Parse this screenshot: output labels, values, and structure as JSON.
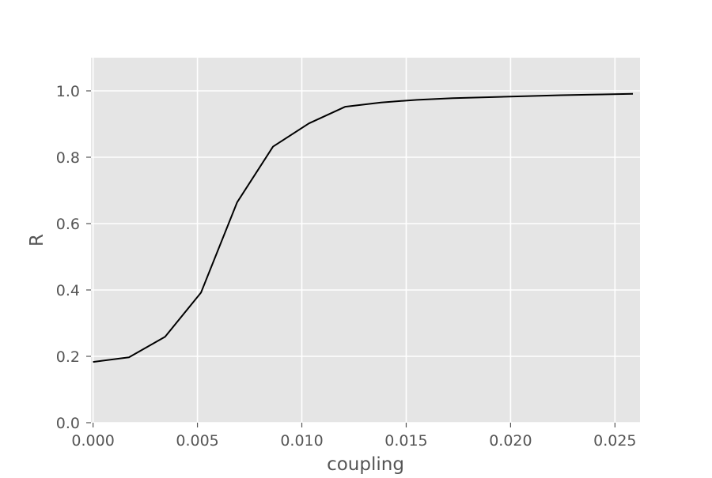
{
  "chart_data": {
    "type": "line",
    "title": "",
    "xlabel": "coupling",
    "ylabel": "R",
    "xlim": [
      -0.0001,
      0.0262
    ],
    "ylim": [
      0.0,
      1.1
    ],
    "xticks": [
      0.0,
      0.005,
      0.01,
      0.015,
      0.02,
      0.025
    ],
    "xtick_labels": [
      "0.000",
      "0.005",
      "0.010",
      "0.015",
      "0.020",
      "0.025"
    ],
    "yticks": [
      0.0,
      0.2,
      0.4,
      0.6,
      0.8,
      1.0
    ],
    "ytick_labels": [
      "0.0",
      "0.2",
      "0.4",
      "0.6",
      "0.8",
      "1.0"
    ],
    "grid": true,
    "style": "ggplot",
    "colors": {
      "plot_background": "#e5e5e5",
      "grid": "#ffffff",
      "line": "#000000",
      "tick_text": "#555555"
    },
    "series": [
      {
        "x": [
          0.0,
          0.00172,
          0.00345,
          0.00517,
          0.0069,
          0.00862,
          0.01034,
          0.01207,
          0.01379,
          0.01552,
          0.01724,
          0.01897,
          0.02069,
          0.02241,
          0.02414,
          0.02586
        ],
        "values": [
          0.183,
          0.197,
          0.259,
          0.392,
          0.664,
          0.832,
          0.902,
          0.952,
          0.965,
          0.973,
          0.978,
          0.981,
          0.984,
          0.987,
          0.989,
          0.991
        ]
      }
    ]
  }
}
